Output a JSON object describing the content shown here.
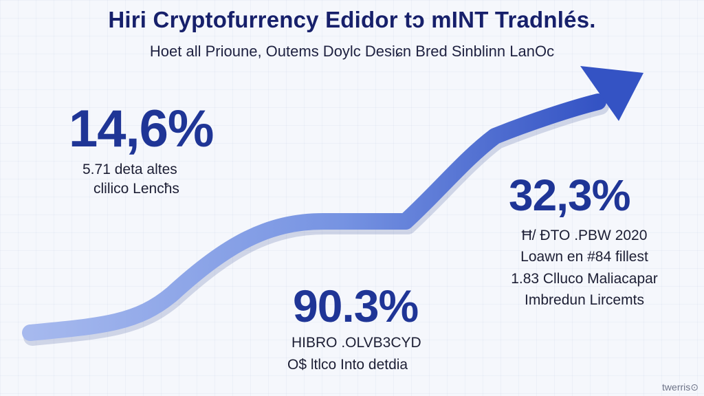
{
  "header": {
    "title": "Hiri Cryptofurrency Edidor tɔ mINT Tradnlés.",
    "subtitle": "Hoet all Prioune, Outems Doylc Desiɕn Bred Sinblinn LanOc"
  },
  "stats": [
    {
      "value": "14,6%",
      "lines": [
        "5.71 deta altes",
        "clilico Lencħs"
      ]
    },
    {
      "value": "32,3%",
      "lines": [
        "Ħ/ ĐTO .PBW 2020",
        "Loawn en #84 fillest",
        "1.83 Clluco Maliacapar",
        "Imbredun Lircemts"
      ]
    },
    {
      "value": "90.3%",
      "lines": [
        "HIBRO .OLVB3CYD",
        "O$ ltlco Into detdia"
      ]
    }
  ],
  "watermark": "twerris⊙",
  "colors": {
    "title": "#17206b",
    "stat": "#1f3596",
    "arrow_light": "#a6b9ee",
    "arrow_dark": "#3453c4"
  }
}
